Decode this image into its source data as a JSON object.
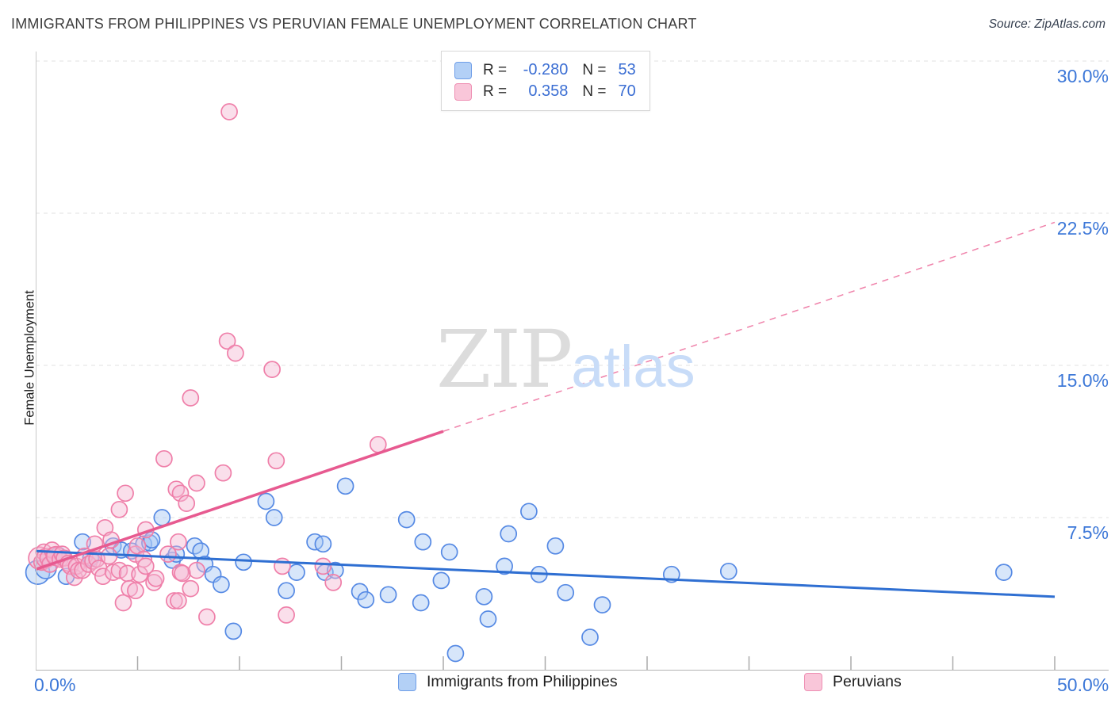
{
  "header": {
    "title": "IMMIGRANTS FROM PHILIPPINES VS PERUVIAN FEMALE UNEMPLOYMENT CORRELATION CHART",
    "source": "Source: ZipAtlas.com"
  },
  "watermark": {
    "zip": "ZIP",
    "atlas": "atlas"
  },
  "r_legend": {
    "r_label": "R = ",
    "n_label": "N = "
  },
  "axes": {
    "y_label": "Female Unemployment",
    "x_min_label": "0.0%",
    "x_max_label": "50.0%",
    "y_ticks": [
      {
        "label": "30.0%",
        "value": 30
      },
      {
        "label": "22.5%",
        "value": 22.5
      },
      {
        "label": "15.0%",
        "value": 15
      },
      {
        "label": "7.5%",
        "value": 7.5
      }
    ],
    "x_tick_values": [
      5,
      10,
      15,
      20,
      25,
      30,
      35,
      40,
      45,
      50
    ]
  },
  "chart_data": {
    "type": "scatter",
    "title": "IMMIGRANTS FROM PHILIPPINES VS PERUVIAN FEMALE UNEMPLOYMENT CORRELATION CHART",
    "xlabel": "",
    "ylabel": "Female Unemployment",
    "xlim": [
      0,
      50
    ],
    "ylim": [
      0,
      31.5
    ],
    "x_unit": "percent",
    "y_unit": "percent",
    "grid": "horizontal-dashed",
    "legend_position": "bottom",
    "marker_radius": 10,
    "series": [
      {
        "id": "philippines",
        "name": "Immigrants from Philippines",
        "R": "-0.280",
        "N": "53",
        "stroke": "#5589e4",
        "fill": "#a6c8f3",
        "fill_opacity": 0.45,
        "points": [
          [
            0.1,
            4.8,
            15
          ],
          [
            0.5,
            5.0,
            13
          ],
          [
            1.1,
            5.65
          ],
          [
            1.5,
            4.6
          ],
          [
            2.3,
            6.3
          ],
          [
            2.7,
            5.5
          ],
          [
            3.8,
            6.1
          ],
          [
            4.2,
            5.9
          ],
          [
            4.7,
            5.85
          ],
          [
            5.3,
            6.2
          ],
          [
            5.6,
            6.25
          ],
          [
            5.7,
            6.4
          ],
          [
            6.2,
            7.5
          ],
          [
            6.7,
            5.4
          ],
          [
            6.9,
            5.7
          ],
          [
            7.8,
            6.1
          ],
          [
            8.1,
            5.85
          ],
          [
            8.3,
            5.2
          ],
          [
            8.7,
            4.7
          ],
          [
            9.1,
            4.2
          ],
          [
            9.7,
            1.9
          ],
          [
            10.2,
            5.3
          ],
          [
            11.3,
            8.3
          ],
          [
            11.7,
            7.5
          ],
          [
            12.3,
            3.9
          ],
          [
            12.8,
            4.8
          ],
          [
            13.7,
            6.3
          ],
          [
            14.1,
            6.2
          ],
          [
            14.2,
            4.8
          ],
          [
            14.7,
            4.9
          ],
          [
            15.2,
            9.05
          ],
          [
            15.9,
            3.85
          ],
          [
            16.2,
            3.45
          ],
          [
            17.3,
            3.7
          ],
          [
            18.2,
            7.4
          ],
          [
            18.9,
            3.3
          ],
          [
            19.0,
            6.3
          ],
          [
            19.9,
            4.4
          ],
          [
            20.3,
            5.8
          ],
          [
            20.6,
            0.8
          ],
          [
            22.0,
            3.6
          ],
          [
            22.2,
            2.5
          ],
          [
            23.0,
            5.1
          ],
          [
            23.2,
            6.7
          ],
          [
            24.2,
            7.8
          ],
          [
            24.7,
            4.7
          ],
          [
            25.5,
            6.1
          ],
          [
            26.0,
            3.8
          ],
          [
            27.2,
            1.6
          ],
          [
            27.8,
            3.2
          ],
          [
            31.2,
            4.7
          ],
          [
            34.0,
            4.85
          ],
          [
            47.5,
            4.8
          ]
        ]
      },
      {
        "id": "peruvians",
        "name": "Peruvians",
        "R": "0.358",
        "N": "70",
        "stroke": "#ef7fa9",
        "fill": "#f5b8d2",
        "fill_opacity": 0.45,
        "points": [
          [
            9.5,
            27.5
          ],
          [
            9.4,
            16.2
          ],
          [
            9.8,
            15.6
          ],
          [
            11.6,
            14.8
          ],
          [
            7.6,
            13.4
          ],
          [
            16.8,
            11.1
          ],
          [
            6.3,
            10.4
          ],
          [
            11.8,
            10.3
          ],
          [
            9.2,
            9.7
          ],
          [
            7.9,
            9.2
          ],
          [
            6.9,
            8.9
          ],
          [
            7.1,
            8.7
          ],
          [
            4.4,
            8.7
          ],
          [
            7.4,
            8.2
          ],
          [
            4.1,
            7.9
          ],
          [
            3.4,
            7.0
          ],
          [
            5.4,
            6.9
          ],
          [
            3.7,
            6.4
          ],
          [
            2.9,
            6.2
          ],
          [
            0.2,
            5.5,
            14
          ],
          [
            0.3,
            5.3
          ],
          [
            0.4,
            5.8
          ],
          [
            0.5,
            5.5,
            12
          ],
          [
            0.6,
            5.5
          ],
          [
            0.7,
            5.2
          ],
          [
            0.8,
            5.9
          ],
          [
            0.9,
            5.65
          ],
          [
            1.0,
            5.6,
            12
          ],
          [
            1.2,
            5.45
          ],
          [
            1.3,
            5.7
          ],
          [
            1.4,
            5.5
          ],
          [
            1.6,
            5.25
          ],
          [
            1.7,
            5.1
          ],
          [
            1.9,
            4.55
          ],
          [
            2.0,
            5.1
          ],
          [
            2.1,
            4.9
          ],
          [
            2.3,
            4.9
          ],
          [
            2.4,
            5.6
          ],
          [
            2.6,
            5.2
          ],
          [
            2.8,
            5.35
          ],
          [
            3.0,
            5.45
          ],
          [
            3.1,
            5.0
          ],
          [
            3.3,
            4.6
          ],
          [
            3.6,
            5.6
          ],
          [
            3.8,
            4.8
          ],
          [
            4.1,
            4.9
          ],
          [
            4.3,
            3.3
          ],
          [
            4.5,
            4.75
          ],
          [
            4.6,
            4.0
          ],
          [
            4.9,
            5.7
          ],
          [
            4.9,
            3.9
          ],
          [
            5.0,
            6.1
          ],
          [
            5.1,
            4.7
          ],
          [
            5.3,
            5.45
          ],
          [
            5.4,
            5.1
          ],
          [
            5.8,
            4.3
          ],
          [
            5.9,
            4.5
          ],
          [
            6.5,
            5.7
          ],
          [
            6.8,
            3.4
          ],
          [
            7.0,
            6.3
          ],
          [
            7.0,
            3.4
          ],
          [
            7.1,
            4.8
          ],
          [
            7.2,
            4.75
          ],
          [
            7.6,
            4.0
          ],
          [
            7.9,
            4.9
          ],
          [
            8.4,
            2.6
          ],
          [
            12.1,
            5.1
          ],
          [
            12.3,
            2.7
          ],
          [
            14.1,
            5.1
          ],
          [
            14.6,
            4.3
          ]
        ]
      }
    ],
    "trend_lines": [
      {
        "series": "philippines",
        "style": "solid",
        "color": "#2f6fd2",
        "width": 3,
        "x1": 0,
        "y1": 5.85,
        "x2": 50,
        "y2": 3.6
      },
      {
        "series": "peruvians",
        "style": "solid",
        "color": "#e75a90",
        "width": 3.5,
        "x1": 0,
        "y1": 4.95,
        "x2": 20,
        "y2": 11.75
      },
      {
        "series": "peruvians",
        "style": "dashed",
        "color": "#ef7fa8",
        "width": 1.5,
        "x1": 20,
        "y1": 11.75,
        "x2": 50,
        "y2": 22.05
      }
    ]
  }
}
